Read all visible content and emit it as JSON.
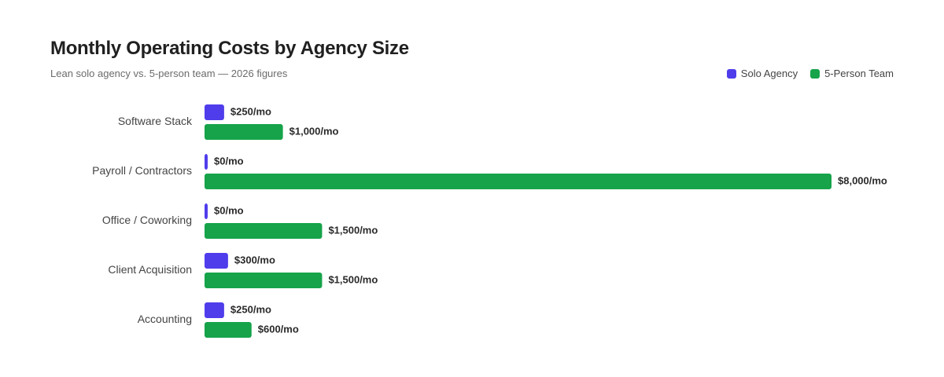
{
  "colors": {
    "solo": "#4F3DEB",
    "team": "#16A34A"
  },
  "chart_data": {
    "type": "bar",
    "orientation": "horizontal",
    "title": "Monthly Operating Costs by Agency Size",
    "subtitle": "Lean solo agency vs. 5-person team — 2026 figures",
    "legend_position": "top-right",
    "grid": false,
    "categories": [
      "Software Stack",
      "Payroll / Contractors",
      "Office / Coworking",
      "Client Acquisition",
      "Accounting"
    ],
    "series": [
      {
        "name": "Solo Agency",
        "values": [
          250,
          0,
          0,
          300,
          250
        ],
        "labels": [
          "$250/mo",
          "$0/mo",
          "$0/mo",
          "$300/mo",
          "$250/mo"
        ]
      },
      {
        "name": "5-Person Team",
        "values": [
          1000,
          8000,
          1500,
          1500,
          600
        ],
        "labels": [
          "$1,000/mo",
          "$8,000/mo",
          "$1,500/mo",
          "$1,500/mo",
          "$600/mo"
        ]
      }
    ],
    "xlim": [
      0,
      8000
    ]
  }
}
